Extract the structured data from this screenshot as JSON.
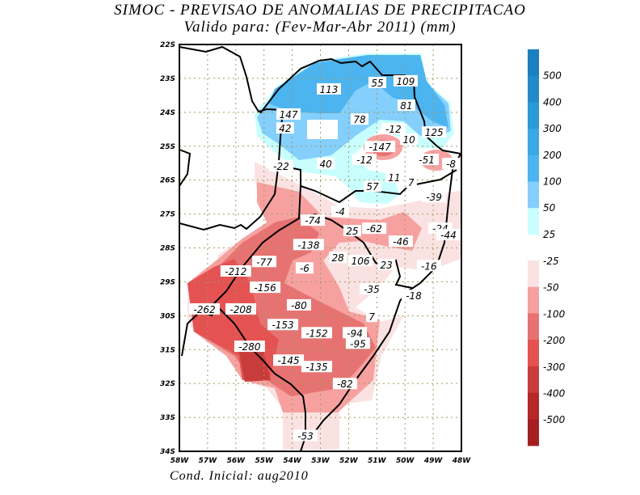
{
  "title": "SIMOC - PREVISAO DE ANOMALIAS DE PRECIPITACAO",
  "subtitle": "Valido para: (Fev-Mar-Abr 2011) (mm)",
  "footer": "Cond. Inicial: aug2010",
  "chart_data": {
    "type": "heatmap",
    "variable": "Precipitation anomaly (mm)",
    "lat_range": [
      -34,
      -22
    ],
    "lon_range": [
      -58,
      -48
    ],
    "lat_ticks": [
      "22S",
      "23S",
      "24S",
      "25S",
      "26S",
      "27S",
      "28S",
      "29S",
      "30S",
      "31S",
      "32S",
      "33S",
      "34S"
    ],
    "lon_ticks": [
      "58W",
      "57W",
      "56W",
      "55W",
      "54W",
      "53W",
      "52W",
      "51W",
      "50W",
      "49W",
      "48W"
    ],
    "grid": true,
    "colorbar": {
      "positive": {
        "levels": [
          "500",
          "400",
          "300",
          "200",
          "100",
          "50",
          "25"
        ],
        "colors": [
          "#1b7fc0",
          "#2389c9",
          "#2b98d8",
          "#3ba8e6",
          "#4cb4ef",
          "#84cffc",
          "#c8fffe"
        ]
      },
      "negative": {
        "levels": [
          "-25",
          "-50",
          "-100",
          "-200",
          "-300",
          "-400",
          "-500"
        ],
        "colors": [
          "#fbe2e2",
          "#f6a1a0",
          "#e67372",
          "#e45252",
          "#c83d3b",
          "#b42828",
          "#a51f22"
        ]
      }
    },
    "labels": [
      {
        "v": "113",
        "lon": -52.7,
        "lat": -23.31
      },
      {
        "v": "55",
        "lon": -50.98,
        "lat": -23.12
      },
      {
        "v": "109",
        "lon": -49.98,
        "lat": -23.07
      },
      {
        "v": "81",
        "lon": -49.95,
        "lat": -23.79
      },
      {
        "v": "147",
        "lon": -54.13,
        "lat": -24.05
      },
      {
        "v": "78",
        "lon": -51.61,
        "lat": -24.2
      },
      {
        "v": "42",
        "lon": -54.25,
        "lat": -24.46
      },
      {
        "v": "125",
        "lon": -48.97,
        "lat": -24.58
      },
      {
        "v": "-12",
        "lon": -50.41,
        "lat": -24.48
      },
      {
        "v": "10",
        "lon": -49.86,
        "lat": -24.79
      },
      {
        "v": "-147",
        "lon": -50.89,
        "lat": -25.01
      },
      {
        "v": "-12",
        "lon": -51.44,
        "lat": -25.39
      },
      {
        "v": "-51",
        "lon": -49.23,
        "lat": -25.39
      },
      {
        "v": "-8",
        "lon": -48.37,
        "lat": -25.51
      },
      {
        "v": "40",
        "lon": -52.81,
        "lat": -25.51
      },
      {
        "v": "-22",
        "lon": -54.39,
        "lat": -25.58
      },
      {
        "v": "11",
        "lon": -50.38,
        "lat": -25.91
      },
      {
        "v": "7",
        "lon": -49.78,
        "lat": -26.06
      },
      {
        "v": "57",
        "lon": -51.15,
        "lat": -26.18
      },
      {
        "v": "-39",
        "lon": -48.97,
        "lat": -26.49
      },
      {
        "v": "-4",
        "lon": -52.3,
        "lat": -26.92
      },
      {
        "v": "-74",
        "lon": -53.27,
        "lat": -27.18
      },
      {
        "v": "25",
        "lon": -51.87,
        "lat": -27.49
      },
      {
        "v": "-62",
        "lon": -51.09,
        "lat": -27.42
      },
      {
        "v": "-24",
        "lon": -48.75,
        "lat": -27.42
      },
      {
        "v": "-44",
        "lon": -48.46,
        "lat": -27.61
      },
      {
        "v": "-46",
        "lon": -50.15,
        "lat": -27.8
      },
      {
        "v": "-138",
        "lon": -53.42,
        "lat": -27.9
      },
      {
        "v": "-77",
        "lon": -54.99,
        "lat": -28.4
      },
      {
        "v": "28",
        "lon": -52.38,
        "lat": -28.28
      },
      {
        "v": "106",
        "lon": -51.58,
        "lat": -28.37
      },
      {
        "v": "23",
        "lon": -50.66,
        "lat": -28.49
      },
      {
        "v": "-6",
        "lon": -53.56,
        "lat": -28.59
      },
      {
        "v": "-212",
        "lon": -56.0,
        "lat": -28.68
      },
      {
        "v": "-16",
        "lon": -49.15,
        "lat": -28.52
      },
      {
        "v": "-156",
        "lon": -54.96,
        "lat": -29.16
      },
      {
        "v": "-35",
        "lon": -51.18,
        "lat": -29.21
      },
      {
        "v": "-18",
        "lon": -49.69,
        "lat": -29.4
      },
      {
        "v": "-80",
        "lon": -53.76,
        "lat": -29.68
      },
      {
        "v": "-262",
        "lon": -57.11,
        "lat": -29.8
      },
      {
        "v": "-208",
        "lon": -55.82,
        "lat": -29.8
      },
      {
        "v": "7",
        "lon": -51.18,
        "lat": -30.02
      },
      {
        "v": "-153",
        "lon": -54.33,
        "lat": -30.26
      },
      {
        "v": "-152",
        "lon": -53.13,
        "lat": -30.5
      },
      {
        "v": "-94",
        "lon": -51.78,
        "lat": -30.5
      },
      {
        "v": "-95",
        "lon": -51.67,
        "lat": -30.81
      },
      {
        "v": "-280",
        "lon": -55.51,
        "lat": -30.9
      },
      {
        "v": "-145",
        "lon": -54.13,
        "lat": -31.31
      },
      {
        "v": "-135",
        "lon": -53.13,
        "lat": -31.5
      },
      {
        "v": "-82",
        "lon": -52.13,
        "lat": -32.0
      },
      {
        "v": "-53",
        "lon": -53.53,
        "lat": -33.53
      }
    ]
  }
}
